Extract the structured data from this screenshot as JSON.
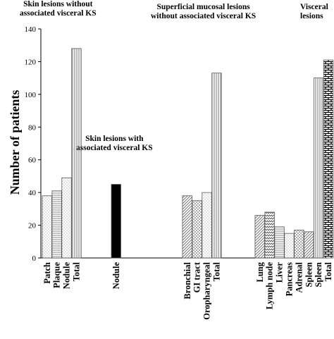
{
  "chart_data": {
    "type": "bar",
    "ylabel": "Number of patients",
    "ylim": [
      0,
      140
    ],
    "yticks": [
      0,
      20,
      40,
      60,
      80,
      100,
      120,
      140
    ],
    "grid": false,
    "annotations": [
      {
        "id": "a1",
        "line1": "Skin lesions without",
        "line2": "associated visceral KS"
      },
      {
        "id": "a2",
        "line1": "Skin lesions with",
        "line2": "associated visceral KS"
      },
      {
        "id": "a3",
        "line1": "Superficial  mucosal lesions",
        "line2": "without associated visceral KS"
      },
      {
        "id": "a4",
        "line1": "Visceral",
        "line2": "lesions"
      }
    ],
    "bars": [
      {
        "group": 1,
        "category": "Patch",
        "value": 38,
        "pattern": "dots"
      },
      {
        "group": 1,
        "category": "Plaque",
        "value": 41,
        "pattern": "hlines"
      },
      {
        "group": 1,
        "category": "Nodule",
        "value": 49,
        "pattern": "dots"
      },
      {
        "group": 1,
        "category": "Total",
        "value": 128,
        "pattern": "vlines"
      },
      {
        "group": 2,
        "category": "Nodule",
        "value": 45,
        "pattern": "solid"
      },
      {
        "group": 3,
        "category": "Bronchial",
        "value": 38,
        "pattern": "diag"
      },
      {
        "group": 3,
        "category": "GI tract",
        "value": 35,
        "pattern": "checker"
      },
      {
        "group": 3,
        "category": "Oropharyngeal",
        "value": 40,
        "pattern": "dots"
      },
      {
        "group": 3,
        "category": "Total",
        "value": 113,
        "pattern": "vlines"
      },
      {
        "group": 4,
        "category": "Lung",
        "value": 26,
        "pattern": "diag"
      },
      {
        "group": 4,
        "category": "Lymph node",
        "value": 28,
        "pattern": "zigzag"
      },
      {
        "group": 4,
        "category": "Liver",
        "value": 19,
        "pattern": "hlines"
      },
      {
        "group": 4,
        "category": "Pancreas",
        "value": 15,
        "pattern": "dots"
      },
      {
        "group": 4,
        "category": "Adrenal",
        "value": 17,
        "pattern": "checker"
      },
      {
        "group": 4,
        "category": "Spleen",
        "value": 16,
        "pattern": "diag"
      },
      {
        "group": 4,
        "category": "Spleen",
        "value": 110,
        "pattern": "vlines"
      },
      {
        "group": 4,
        "category": "Total",
        "value": 121,
        "pattern": "brick"
      }
    ]
  }
}
